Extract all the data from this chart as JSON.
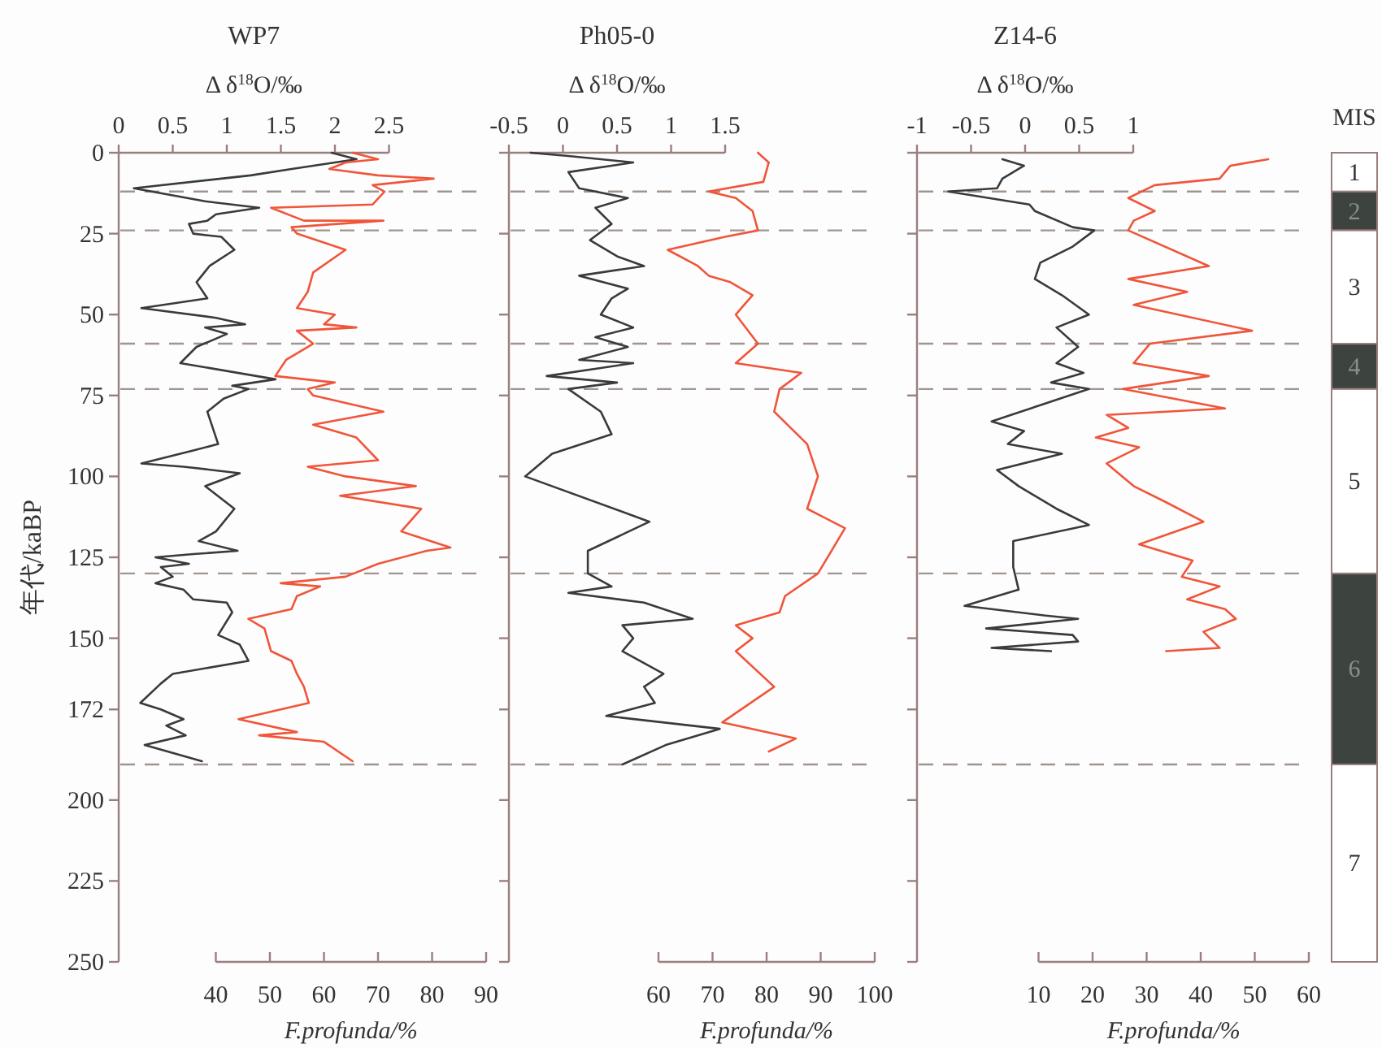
{
  "chart_data": [
    {
      "type": "line",
      "title": "WP7",
      "x2label": "Δ δ$^{18}$O/‰",
      "xlabel": "F.profunda/%",
      "ylabel": "年代/kaBP",
      "x2lim": [
        0,
        2.5
      ],
      "x2ticks": [
        0,
        0.5,
        1,
        1.5,
        2,
        2.5
      ],
      "xlim": [
        40,
        90
      ],
      "xticks": [
        40,
        50,
        60,
        70,
        80,
        90
      ],
      "ylim": [
        250,
        0
      ],
      "yticks": [
        0,
        25,
        50,
        75,
        100,
        125,
        150,
        172,
        200,
        225,
        250
      ],
      "series": [
        {
          "color": "#3a3a3a",
          "axis": "x2",
          "x": [
            1.97,
            2.2,
            2.0,
            1.6,
            1.22,
            0.14,
            0.8,
            1.3,
            0.9,
            0.82,
            0.65,
            0.69,
            0.95,
            1.07,
            0.84,
            0.72,
            0.82,
            0.21,
            0.9,
            1.17,
            0.8,
            1.0,
            0.72,
            0.57,
            1.45,
            1.05,
            1.2,
            0.97,
            0.82,
            0.87,
            0.92,
            0.69,
            0.21,
            0.6,
            1.12,
            0.8,
            1.07,
            0.9,
            0.74,
            1.1,
            0.69,
            0.34,
            0.65,
            0.39,
            0.5,
            0.34,
            0.6,
            0.69,
            1.0,
            1.05,
            0.92,
            1.12,
            1.2,
            0.5,
            0.39,
            0.2,
            0.39,
            0.6,
            0.44,
            0.62,
            0.24,
            0.77
          ],
          "values": [
            0,
            2,
            3,
            5,
            7,
            11,
            15,
            17,
            19,
            21,
            22,
            25,
            26,
            30,
            35,
            40,
            45,
            48,
            51,
            53,
            54,
            56,
            60,
            65,
            70,
            72,
            73,
            76,
            80,
            85,
            90,
            92,
            96,
            97,
            99,
            103,
            110,
            117,
            120,
            123,
            124,
            125,
            127,
            128,
            131,
            133,
            135,
            138,
            139,
            142,
            149,
            152,
            157,
            161,
            164,
            170,
            172,
            175,
            177,
            180,
            183,
            188
          ]
        },
        {
          "color": "#f0553a",
          "x": [
            65.3,
            70,
            64,
            61,
            70,
            80.3,
            69,
            71.2,
            69,
            50.2,
            56.3,
            71,
            54,
            55,
            64,
            58,
            57,
            55,
            62,
            60,
            66,
            55,
            58,
            53,
            51,
            62,
            57,
            58,
            71,
            58,
            66,
            70,
            57,
            64,
            77,
            63,
            78,
            74.3,
            83.4,
            79,
            70,
            64,
            52,
            59.3,
            55,
            54,
            46,
            49,
            50.2,
            54,
            55,
            56.3,
            57.2,
            44.2,
            55,
            48,
            60,
            65.3
          ],
          "values": [
            0,
            2,
            3,
            5,
            7,
            8,
            10,
            12,
            16,
            17,
            21,
            21,
            23,
            25,
            30,
            37,
            43,
            48,
            50,
            53,
            54,
            55,
            59,
            64,
            69,
            71,
            73,
            75,
            80,
            84,
            88,
            95,
            97,
            100,
            103,
            106,
            110,
            117,
            122,
            123,
            127,
            131,
            133,
            134,
            137,
            141,
            144,
            147,
            154,
            157,
            161,
            165,
            170,
            175,
            179,
            180,
            182,
            188
          ]
        }
      ],
      "ref_lines": [
        {
          "axis": "y",
          "value": 12,
          "color": "#a0958f",
          "line_style": "dashed"
        },
        {
          "axis": "y",
          "value": 24,
          "color": "#a0958f",
          "line_style": "dashed"
        },
        {
          "axis": "y",
          "value": 59,
          "color": "#a0958f",
          "line_style": "dashed"
        },
        {
          "axis": "y",
          "value": 73,
          "color": "#a0958f",
          "line_style": "dashed"
        },
        {
          "axis": "y",
          "value": 130,
          "color": "#a0958f",
          "line_style": "dashed"
        },
        {
          "axis": "y",
          "value": 189,
          "color": "#a0958f",
          "line_style": "dashed"
        }
      ]
    },
    {
      "type": "line",
      "title": "Ph05-0",
      "x2label": "Δ δ$^{18}$O/‰",
      "xlabel": "F.profunda/%",
      "x2lim": [
        -0.5,
        1.5
      ],
      "x2ticks": [
        -0.5,
        0,
        0.5,
        1,
        1.5
      ],
      "xlim": [
        60,
        100
      ],
      "xticks": [
        60,
        70,
        80,
        90,
        100
      ],
      "ylim": [
        250,
        0
      ],
      "yticks": [
        0,
        25,
        50,
        75,
        100,
        125,
        150,
        172,
        200,
        225,
        250
      ],
      "tick_labels": "x",
      "series": [
        {
          "color": "#3a3a3a",
          "axis": "x2",
          "x": [
            -0.3,
            0.05,
            0.65,
            0.05,
            0.15,
            0.6,
            0.3,
            0.45,
            0.25,
            0.5,
            0.75,
            0.15,
            0.6,
            0.45,
            0.35,
            0.65,
            0.3,
            0.6,
            0.15,
            0.65,
            -0.15,
            0.5,
            0.05,
            0.35,
            0.45,
            -0.1,
            -0.35,
            0.8,
            0.23,
            0.23,
            0.45,
            0.05,
            0.75,
            1.2,
            0.55,
            0.65,
            0.55,
            0.93,
            0.75,
            0.85,
            0.4,
            1.45,
            0.95,
            0.55
          ],
          "values": [
            0,
            1,
            3,
            6,
            11,
            14,
            17,
            22,
            27,
            32,
            35,
            38,
            42,
            45,
            50,
            54,
            57,
            60,
            64,
            65,
            69,
            71,
            73,
            80,
            87,
            93,
            100,
            114,
            123,
            130,
            134,
            136,
            139,
            144,
            146,
            150,
            154,
            161,
            165,
            170,
            174,
            178,
            183,
            189
          ]
        },
        {
          "color": "#f0553a",
          "x": [
            78.4,
            80.4,
            79.4,
            69.3,
            74.3,
            77.4,
            78.4,
            72.3,
            61.7,
            67.3,
            69.3,
            73.3,
            77.4,
            74.3,
            78.4,
            74.3,
            86.4,
            82.4,
            81.4,
            87.5,
            89.5,
            87.5,
            94.5,
            89.5,
            83.4,
            82.4,
            74.3,
            77.4,
            74.3,
            81.4,
            71.8,
            85.4,
            80.4
          ],
          "values": [
            0,
            3,
            9,
            12,
            14,
            18,
            24,
            26,
            30,
            35,
            38,
            40,
            44,
            50,
            59,
            65,
            68,
            73,
            80,
            90,
            100,
            110,
            116,
            130,
            137,
            142,
            146,
            150,
            154,
            165,
            176,
            181,
            185
          ]
        }
      ],
      "ref_lines": [
        {
          "axis": "y",
          "value": 12,
          "color": "#a0958f",
          "line_style": "dashed"
        },
        {
          "axis": "y",
          "value": 24,
          "color": "#a0958f",
          "line_style": "dashed"
        },
        {
          "axis": "y",
          "value": 59,
          "color": "#a0958f",
          "line_style": "dashed"
        },
        {
          "axis": "y",
          "value": 73,
          "color": "#a0958f",
          "line_style": "dashed"
        },
        {
          "axis": "y",
          "value": 130,
          "color": "#a0958f",
          "line_style": "dashed"
        },
        {
          "axis": "y",
          "value": 189,
          "color": "#a0958f",
          "line_style": "dashed"
        }
      ]
    },
    {
      "type": "line",
      "title": "Z14-6",
      "x2label": "Δ δ$^{18}$O/‰",
      "xlabel": "F.profunda/%",
      "x2lim": [
        -1,
        1
      ],
      "x2ticks": [
        -1,
        -0.5,
        0,
        0.5,
        1
      ],
      "xlim": [
        10,
        60
      ],
      "xticks": [
        10,
        20,
        30,
        40,
        50,
        60
      ],
      "ylim": [
        250,
        0
      ],
      "yticks": [
        0,
        25,
        50,
        75,
        100,
        125,
        150,
        172,
        200,
        225,
        250
      ],
      "tick_labels": "x",
      "series": [
        {
          "color": "#3a3a3a",
          "axis": "x2",
          "x": [
            -0.21,
            -0.01,
            -0.21,
            -0.26,
            -0.71,
            0.04,
            0.09,
            0.44,
            0.64,
            0.44,
            0.14,
            0.09,
            0.34,
            0.59,
            0.29,
            0.49,
            0.29,
            0.54,
            0.24,
            0.59,
            0.14,
            -0.31,
            -0.01,
            -0.16,
            0.34,
            -0.26,
            -0.06,
            0.29,
            0.59,
            -0.11,
            -0.11,
            -0.06,
            -0.56,
            0.19,
            0.49,
            -0.36,
            0.44,
            0.49,
            -0.31,
            0.24
          ],
          "values": [
            2,
            4,
            8,
            11,
            12,
            16,
            18,
            23,
            24,
            29,
            34,
            39,
            44,
            50,
            54,
            60,
            65,
            68,
            71,
            73,
            78,
            83,
            86,
            90,
            93,
            98,
            103,
            110,
            115,
            120,
            128,
            135,
            140,
            143,
            144,
            147,
            149,
            151,
            153,
            154
          ]
        },
        {
          "color": "#f0553a",
          "x": [
            52.5,
            45.5,
            43.5,
            31.5,
            26.6,
            31.5,
            27.6,
            26.6,
            41.5,
            26.6,
            37.5,
            27.6,
            49.5,
            30.6,
            27.6,
            41.5,
            25.6,
            44.5,
            22.6,
            26.6,
            20.6,
            28.6,
            22.6,
            27.6,
            33.6,
            40.5,
            28.6,
            38.5,
            36.5,
            43.5,
            37.5,
            44.5,
            46.5,
            40.5,
            43.5,
            33.6
          ],
          "values": [
            2,
            4,
            8,
            10,
            14,
            18,
            21,
            24,
            35,
            39,
            43,
            47,
            55,
            59,
            65,
            69,
            73,
            79,
            81,
            85,
            88,
            91,
            96,
            103,
            108,
            114,
            121,
            126,
            131,
            134,
            138,
            141,
            144,
            148,
            153,
            154
          ]
        }
      ],
      "ref_lines": [
        {
          "axis": "y",
          "value": 12,
          "color": "#a0958f",
          "line_style": "dashed"
        },
        {
          "axis": "y",
          "value": 24,
          "color": "#a0958f",
          "line_style": "dashed"
        },
        {
          "axis": "y",
          "value": 59,
          "color": "#a0958f",
          "line_style": "dashed"
        },
        {
          "axis": "y",
          "value": 73,
          "color": "#a0958f",
          "line_style": "dashed"
        },
        {
          "axis": "y",
          "value": 130,
          "color": "#a0958f",
          "line_style": "dashed"
        },
        {
          "axis": "y",
          "value": 189,
          "color": "#a0958f",
          "line_style": "dashed"
        }
      ]
    },
    {
      "type": "bar",
      "stacked": true,
      "title": "MIS",
      "categories": [
        null
      ],
      "ylim": [
        250,
        0
      ],
      "tick_labels": false,
      "series": [
        {
          "name": "1",
          "color": "#ffffff",
          "values": [
            12
          ]
        },
        {
          "name": "2",
          "color": "#3d4440",
          "values": [
            12
          ]
        },
        {
          "name": "3",
          "color": "#ffffff",
          "values": [
            35
          ]
        },
        {
          "name": "4",
          "color": "#3d4440",
          "values": [
            14
          ]
        },
        {
          "name": "5",
          "color": "#ffffff",
          "values": [
            57
          ]
        },
        {
          "name": "6",
          "color": "#3d4440",
          "values": [
            59
          ]
        },
        {
          "name": "7",
          "color": "#ffffff",
          "values": [
            61
          ]
        }
      ]
    }
  ]
}
